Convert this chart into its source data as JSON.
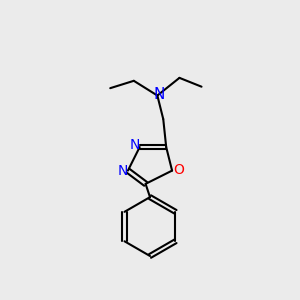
{
  "background_color": "#ebebeb",
  "bond_color": "#000000",
  "N_color": "#0000ff",
  "O_color": "#ff0000",
  "bond_width": 1.5,
  "font_size": 10,
  "figsize": [
    3.0,
    3.0
  ],
  "dpi": 100,
  "xlim": [
    0,
    10
  ],
  "ylim": [
    0,
    10
  ]
}
